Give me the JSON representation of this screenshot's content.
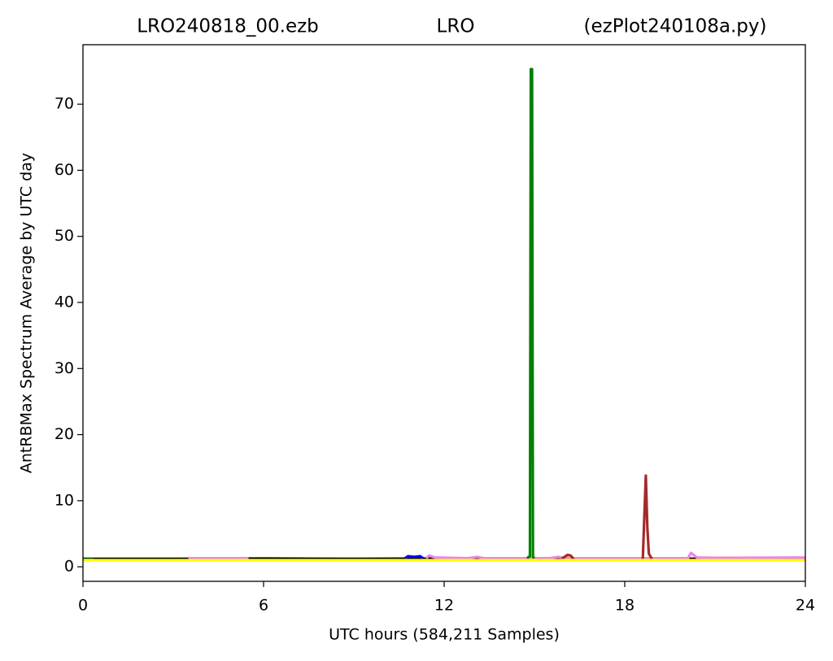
{
  "chart_data": {
    "type": "line",
    "title": [
      "LRO240818_00.ezb",
      "LRO",
      "(ezPlot240108a.py)"
    ],
    "xlabel": "UTC hours  (584,211 Samples)",
    "ylabel": "AntRBMax Spectrum Average by UTC day",
    "xlim": [
      0,
      24
    ],
    "xticks": [
      0,
      6,
      12,
      18,
      24
    ],
    "ylim": [
      -2.2,
      79
    ],
    "yticks": [
      0,
      10,
      20,
      30,
      40,
      50,
      60,
      70
    ],
    "grid": false,
    "series": [
      {
        "color": "#000000",
        "x": [
          0,
          3,
          6,
          9,
          12,
          15,
          18,
          21,
          24
        ],
        "values": [
          1.2,
          1.2,
          1.25,
          1.2,
          1.25,
          1.2,
          1.25,
          1.2,
          1.25
        ]
      },
      {
        "color": "#ee82ee",
        "x": [
          3.5,
          5.5,
          5.6,
          11.4,
          11.5,
          11.7,
          12.8,
          13.1,
          13.3,
          15.5,
          15.8,
          16,
          20.1,
          20.2,
          20.4,
          21,
          24
        ],
        "values": [
          1.3,
          1.3,
          null,
          1.3,
          1.7,
          1.4,
          1.3,
          1.5,
          1.3,
          1.3,
          1.5,
          1.3,
          1.3,
          2.1,
          1.4,
          1.35,
          1.4
        ]
      },
      {
        "color": "#0000ff",
        "x": [
          10.7,
          10.8,
          11,
          11.2,
          11.3
        ],
        "values": [
          1.3,
          1.6,
          1.5,
          1.6,
          1.3
        ]
      },
      {
        "color": "#a52a2a",
        "x": [
          15.9,
          16.1,
          16.2,
          16.3,
          16.4,
          18.6,
          18.7,
          18.75,
          18.8,
          18.9
        ],
        "values": [
          1.2,
          1.8,
          1.7,
          1.2,
          null,
          1.2,
          13.8,
          6,
          2,
          1.2
        ]
      },
      {
        "color": "#008000",
        "x": [
          0,
          0.35,
          0.4,
          14.75,
          14.85,
          14.88,
          14.92,
          14.95,
          15.0
        ],
        "values": [
          1.1,
          1.1,
          null,
          1.3,
          1.6,
          75.3,
          75.3,
          1.5,
          1.3
        ]
      },
      {
        "color": "#ffff00",
        "x": [
          0,
          24
        ],
        "values": [
          1.0,
          1.0
        ]
      }
    ]
  }
}
